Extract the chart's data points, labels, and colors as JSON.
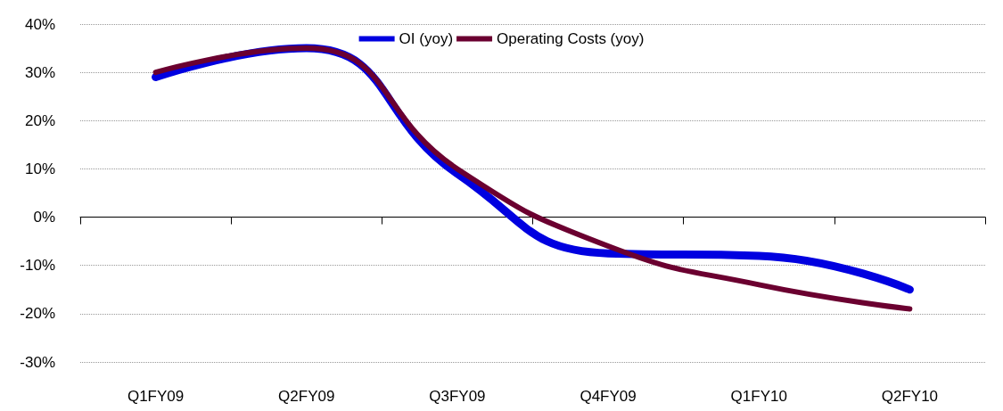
{
  "chart_data": {
    "type": "line",
    "categories": [
      "Q1FY09",
      "Q2FY09",
      "Q3FY09",
      "Q4FY09",
      "Q1FY10",
      "Q2FY10"
    ],
    "series": [
      {
        "name": "OI (yoy)",
        "color": "#0000e0",
        "values": [
          29,
          35,
          9,
          -7.5,
          -8,
          -15
        ]
      },
      {
        "name": "Operating Costs (yoy)",
        "color": "#6b0030",
        "values": [
          30,
          35,
          10,
          -6,
          -14,
          -19
        ]
      }
    ],
    "ylim": [
      -30,
      40
    ],
    "yticks": [
      {
        "value": -30,
        "label": "-30%"
      },
      {
        "value": -20,
        "label": "-20%"
      },
      {
        "value": -10,
        "label": "-10%"
      },
      {
        "value": 0,
        "label": "0%"
      },
      {
        "value": 10,
        "label": "10%"
      },
      {
        "value": 20,
        "label": "20%"
      },
      {
        "value": 30,
        "label": "30%"
      },
      {
        "value": 40,
        "label": "40%"
      }
    ],
    "grid": "y",
    "legend": "top",
    "marker": "none",
    "line_style": "solid"
  }
}
